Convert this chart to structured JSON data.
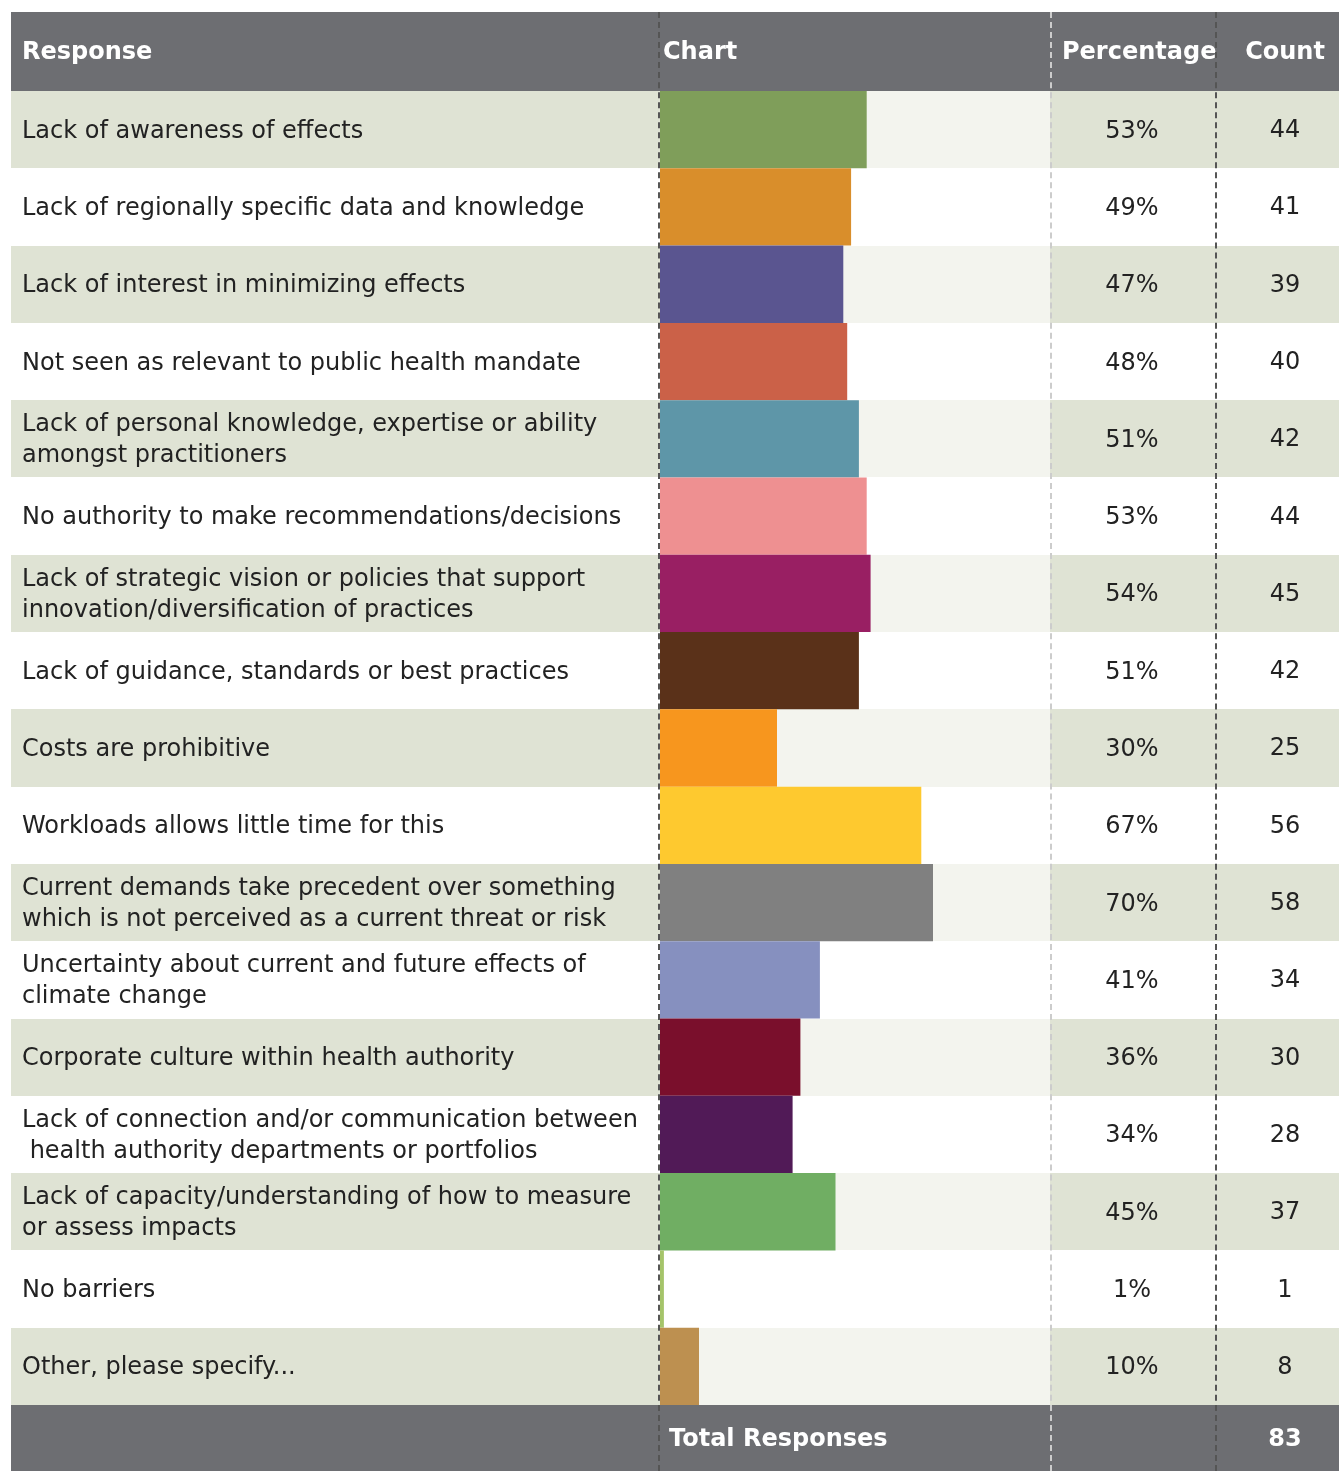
{
  "chart_data": {
    "type": "bar",
    "orientation": "horizontal",
    "ylabel": "Response",
    "xlabel": "Chart",
    "categories": [
      "Lack of awareness of effects",
      "Lack of regionally specific data and knowledge",
      "Lack of interest in minimizing effects",
      "Not seen as relevant to public health mandate",
      "Lack of personal knowledge, expertise or ability amongst practitioners",
      "No authority to make recommendations/decisions",
      "Lack of strategic vision or policies that support innovation/diversification of practices",
      "Lack of guidance, standards or best practices",
      "Costs are prohibitive",
      "Workloads allows little time for this",
      "Current demands take precedent over something which is not perceived as a current threat or risk",
      "Uncertainty about current and future effects of climate change",
      "Corporate culture within health authority",
      "Lack of connection and/or communication between health authority departments or portfolios",
      "Lack of capacity/understanding of how to measure or assess impacts",
      "No barriers",
      "Other, please specify..."
    ],
    "values": [
      53,
      49,
      47,
      48,
      51,
      53,
      54,
      51,
      30,
      67,
      70,
      41,
      36,
      34,
      45,
      1,
      10
    ],
    "value_labels": [
      "53%",
      "49%",
      "47%",
      "48%",
      "51%",
      "53%",
      "54%",
      "51%",
      "30%",
      "67%",
      "70%",
      "41%",
      "36%",
      "34%",
      "45%",
      "1%",
      "10%"
    ],
    "colors": [
      "#7f9e5a",
      "#d98e2b",
      "#5a5590",
      "#cb6148",
      "#5e96a8",
      "#ee9091",
      "#991f63",
      "#5a3119",
      "#f7961e",
      "#fec92f",
      "#808080",
      "#8690bf",
      "#7a0f2c",
      "#511a57",
      "#70ae63",
      "#a5c46a",
      "#bd9050"
    ],
    "xlim": [
      0,
      100
    ],
    "tick_labels": false,
    "annotations": [
      "Percentage",
      "Count",
      "Total Responses",
      "83",
      "44",
      "41",
      "39",
      "40",
      "42",
      "44",
      "45",
      "42",
      "25",
      "56",
      "58",
      "34",
      "30",
      "28",
      "37",
      "1",
      "8"
    ]
  }
}
